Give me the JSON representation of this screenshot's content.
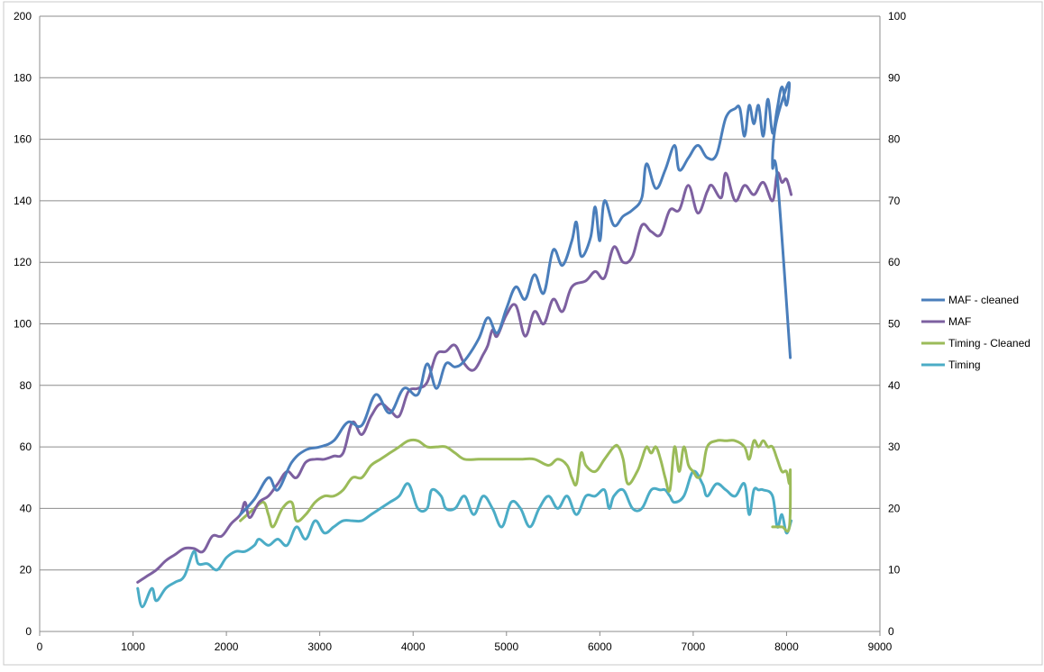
{
  "chart_data": {
    "type": "line",
    "title": "",
    "xlabel": "",
    "ylabel": "",
    "xlim": [
      0,
      9000
    ],
    "ylim_left": [
      0,
      200
    ],
    "ylim_right": [
      0,
      100
    ],
    "x_ticks": [
      "0",
      "1000",
      "2000",
      "3000",
      "4000",
      "5000",
      "6000",
      "7000",
      "8000",
      "9000"
    ],
    "y_left_ticks": [
      "0",
      "20",
      "40",
      "60",
      "80",
      "100",
      "120",
      "140",
      "160",
      "180",
      "200"
    ],
    "y_right_ticks": [
      "0",
      "10",
      "20",
      "30",
      "40",
      "50",
      "60",
      "70",
      "80",
      "90",
      "100"
    ],
    "grid": "horizontal",
    "legend_position": "right",
    "series": [
      {
        "name": "MAF - cleaned",
        "color": "#4a7ebb",
        "axis": "left",
        "points": [
          [
            2150,
            38
          ],
          [
            2300,
            43
          ],
          [
            2450,
            50
          ],
          [
            2550,
            46
          ],
          [
            2700,
            55
          ],
          [
            2850,
            59
          ],
          [
            3000,
            60
          ],
          [
            3150,
            62
          ],
          [
            3300,
            68
          ],
          [
            3450,
            67
          ],
          [
            3600,
            77
          ],
          [
            3750,
            71
          ],
          [
            3900,
            79
          ],
          [
            4050,
            77
          ],
          [
            4150,
            87
          ],
          [
            4250,
            79
          ],
          [
            4350,
            87
          ],
          [
            4450,
            86
          ],
          [
            4550,
            88
          ],
          [
            4700,
            95
          ],
          [
            4800,
            102
          ],
          [
            4900,
            97
          ],
          [
            5000,
            105
          ],
          [
            5100,
            112
          ],
          [
            5200,
            108
          ],
          [
            5300,
            116
          ],
          [
            5400,
            110
          ],
          [
            5500,
            124
          ],
          [
            5600,
            119
          ],
          [
            5700,
            127
          ],
          [
            5750,
            133
          ],
          [
            5800,
            122
          ],
          [
            5900,
            128
          ],
          [
            5950,
            138
          ],
          [
            6000,
            127
          ],
          [
            6050,
            140
          ],
          [
            6150,
            132
          ],
          [
            6250,
            135
          ],
          [
            6350,
            137
          ],
          [
            6450,
            141
          ],
          [
            6500,
            152
          ],
          [
            6600,
            144
          ],
          [
            6700,
            150
          ],
          [
            6800,
            158
          ],
          [
            6850,
            150
          ],
          [
            6950,
            154
          ],
          [
            7050,
            158
          ],
          [
            7150,
            154
          ],
          [
            7250,
            155
          ],
          [
            7350,
            167
          ],
          [
            7450,
            170
          ],
          [
            7500,
            170
          ],
          [
            7550,
            161
          ],
          [
            7600,
            171
          ],
          [
            7650,
            165
          ],
          [
            7700,
            171
          ],
          [
            7750,
            161
          ],
          [
            7800,
            173
          ],
          [
            7850,
            162
          ],
          [
            7900,
            170
          ],
          [
            7950,
            177
          ],
          [
            8000,
            171
          ],
          [
            8030,
            178
          ],
          [
            7990,
            176
          ],
          [
            7880,
            164
          ],
          [
            7850,
            151
          ],
          [
            7900,
            148
          ],
          [
            8040,
            89
          ]
        ]
      },
      {
        "name": "MAF",
        "color": "#7d60a0",
        "axis": "left",
        "points": [
          [
            1050,
            16
          ],
          [
            1150,
            18
          ],
          [
            1250,
            20
          ],
          [
            1350,
            23
          ],
          [
            1450,
            25
          ],
          [
            1550,
            27
          ],
          [
            1650,
            27
          ],
          [
            1750,
            26
          ],
          [
            1850,
            31
          ],
          [
            1950,
            31
          ],
          [
            2050,
            35
          ],
          [
            2150,
            38
          ],
          [
            2200,
            42
          ],
          [
            2250,
            37
          ],
          [
            2350,
            42
          ],
          [
            2450,
            44
          ],
          [
            2550,
            48
          ],
          [
            2650,
            52
          ],
          [
            2750,
            50
          ],
          [
            2850,
            55
          ],
          [
            2950,
            56
          ],
          [
            3050,
            56
          ],
          [
            3150,
            57
          ],
          [
            3250,
            58
          ],
          [
            3350,
            68
          ],
          [
            3450,
            64
          ],
          [
            3550,
            70
          ],
          [
            3650,
            74
          ],
          [
            3750,
            72
          ],
          [
            3850,
            70
          ],
          [
            3950,
            78
          ],
          [
            4050,
            79
          ],
          [
            4150,
            81
          ],
          [
            4250,
            90
          ],
          [
            4350,
            91
          ],
          [
            4450,
            93
          ],
          [
            4550,
            87
          ],
          [
            4650,
            85
          ],
          [
            4750,
            90
          ],
          [
            4800,
            93
          ],
          [
            4850,
            98
          ],
          [
            4900,
            96
          ],
          [
            5000,
            103
          ],
          [
            5100,
            106
          ],
          [
            5200,
            96
          ],
          [
            5300,
            104
          ],
          [
            5400,
            100
          ],
          [
            5500,
            108
          ],
          [
            5600,
            104
          ],
          [
            5700,
            112
          ],
          [
            5850,
            114
          ],
          [
            5950,
            117
          ],
          [
            6050,
            115
          ],
          [
            6150,
            125
          ],
          [
            6250,
            120
          ],
          [
            6350,
            122
          ],
          [
            6450,
            132
          ],
          [
            6550,
            130
          ],
          [
            6650,
            129
          ],
          [
            6750,
            137
          ],
          [
            6850,
            137
          ],
          [
            6950,
            145
          ],
          [
            7050,
            136
          ],
          [
            7150,
            143
          ],
          [
            7200,
            145
          ],
          [
            7300,
            141
          ],
          [
            7350,
            149
          ],
          [
            7450,
            140
          ],
          [
            7550,
            145
          ],
          [
            7650,
            142
          ],
          [
            7750,
            146
          ],
          [
            7850,
            140
          ],
          [
            7900,
            149
          ],
          [
            7950,
            146
          ],
          [
            8000,
            147
          ],
          [
            8050,
            142
          ]
        ]
      },
      {
        "name": "Timing - Cleaned",
        "color": "#9bbb59",
        "axis": "right",
        "points": [
          [
            2150,
            18
          ],
          [
            2300,
            20
          ],
          [
            2400,
            21
          ],
          [
            2450,
            19
          ],
          [
            2500,
            17
          ],
          [
            2600,
            20
          ],
          [
            2700,
            21
          ],
          [
            2750,
            18
          ],
          [
            2850,
            19
          ],
          [
            2950,
            21
          ],
          [
            3050,
            22
          ],
          [
            3150,
            22
          ],
          [
            3250,
            23
          ],
          [
            3350,
            25
          ],
          [
            3450,
            25
          ],
          [
            3550,
            27
          ],
          [
            3650,
            28
          ],
          [
            3750,
            29
          ],
          [
            3850,
            30
          ],
          [
            3950,
            31
          ],
          [
            4050,
            31
          ],
          [
            4150,
            30
          ],
          [
            4250,
            30
          ],
          [
            4350,
            30
          ],
          [
            4450,
            29
          ],
          [
            4550,
            28
          ],
          [
            4700,
            28
          ],
          [
            4850,
            28
          ],
          [
            5000,
            28
          ],
          [
            5150,
            28
          ],
          [
            5300,
            28
          ],
          [
            5450,
            27
          ],
          [
            5550,
            28
          ],
          [
            5650,
            27
          ],
          [
            5700,
            25
          ],
          [
            5750,
            24
          ],
          [
            5800,
            29
          ],
          [
            5850,
            27
          ],
          [
            5950,
            26
          ],
          [
            6050,
            28
          ],
          [
            6150,
            30
          ],
          [
            6200,
            30
          ],
          [
            6250,
            28
          ],
          [
            6300,
            24
          ],
          [
            6400,
            26
          ],
          [
            6450,
            28
          ],
          [
            6500,
            30
          ],
          [
            6550,
            29
          ],
          [
            6600,
            30
          ],
          [
            6650,
            28
          ],
          [
            6700,
            25
          ],
          [
            6750,
            23
          ],
          [
            6800,
            30
          ],
          [
            6850,
            26
          ],
          [
            6900,
            30
          ],
          [
            6950,
            27
          ],
          [
            7000,
            26
          ],
          [
            7050,
            25
          ],
          [
            7100,
            26
          ],
          [
            7150,
            30
          ],
          [
            7250,
            31
          ],
          [
            7350,
            31
          ],
          [
            7450,
            31
          ],
          [
            7550,
            30
          ],
          [
            7600,
            28
          ],
          [
            7650,
            31
          ],
          [
            7700,
            30
          ],
          [
            7750,
            31
          ],
          [
            7800,
            30
          ],
          [
            7850,
            30
          ],
          [
            7900,
            28
          ],
          [
            7950,
            26
          ],
          [
            8000,
            26
          ],
          [
            8030,
            24
          ],
          [
            8040,
            26
          ],
          [
            8030,
            17
          ],
          [
            7950,
            17
          ],
          [
            7850,
            17
          ]
        ]
      },
      {
        "name": "Timing",
        "color": "#4bacc6",
        "axis": "right",
        "points": [
          [
            1050,
            7
          ],
          [
            1100,
            4
          ],
          [
            1200,
            7
          ],
          [
            1250,
            5
          ],
          [
            1350,
            7
          ],
          [
            1450,
            8
          ],
          [
            1550,
            9
          ],
          [
            1650,
            13
          ],
          [
            1700,
            11
          ],
          [
            1800,
            11
          ],
          [
            1900,
            10
          ],
          [
            2000,
            12
          ],
          [
            2100,
            13
          ],
          [
            2200,
            13
          ],
          [
            2300,
            14
          ],
          [
            2350,
            15
          ],
          [
            2450,
            14
          ],
          [
            2550,
            15
          ],
          [
            2650,
            14
          ],
          [
            2750,
            17
          ],
          [
            2850,
            15
          ],
          [
            2950,
            18
          ],
          [
            3050,
            16
          ],
          [
            3150,
            17
          ],
          [
            3250,
            18
          ],
          [
            3350,
            18
          ],
          [
            3450,
            18
          ],
          [
            3550,
            19
          ],
          [
            3650,
            20
          ],
          [
            3750,
            21
          ],
          [
            3850,
            22
          ],
          [
            3950,
            24
          ],
          [
            4050,
            20
          ],
          [
            4150,
            20
          ],
          [
            4200,
            23
          ],
          [
            4300,
            22
          ],
          [
            4350,
            20
          ],
          [
            4450,
            20
          ],
          [
            4550,
            22
          ],
          [
            4650,
            19
          ],
          [
            4750,
            22
          ],
          [
            4850,
            20
          ],
          [
            4950,
            17
          ],
          [
            5050,
            21
          ],
          [
            5150,
            20
          ],
          [
            5250,
            17
          ],
          [
            5350,
            20
          ],
          [
            5450,
            22
          ],
          [
            5550,
            20
          ],
          [
            5650,
            22
          ],
          [
            5750,
            19
          ],
          [
            5850,
            22
          ],
          [
            5950,
            22
          ],
          [
            6050,
            23
          ],
          [
            6100,
            20
          ],
          [
            6150,
            22
          ],
          [
            6250,
            23
          ],
          [
            6350,
            20
          ],
          [
            6450,
            20
          ],
          [
            6550,
            23
          ],
          [
            6650,
            23
          ],
          [
            6700,
            23
          ],
          [
            6750,
            22
          ],
          [
            6800,
            21
          ],
          [
            6900,
            22
          ],
          [
            7000,
            26
          ],
          [
            7100,
            24
          ],
          [
            7150,
            22
          ],
          [
            7250,
            24
          ],
          [
            7350,
            23
          ],
          [
            7450,
            22
          ],
          [
            7550,
            24
          ],
          [
            7600,
            19
          ],
          [
            7650,
            23
          ],
          [
            7700,
            23
          ],
          [
            7750,
            23
          ],
          [
            7850,
            22
          ],
          [
            7900,
            17
          ],
          [
            7950,
            19
          ],
          [
            8000,
            16
          ],
          [
            8050,
            18
          ]
        ]
      }
    ]
  }
}
